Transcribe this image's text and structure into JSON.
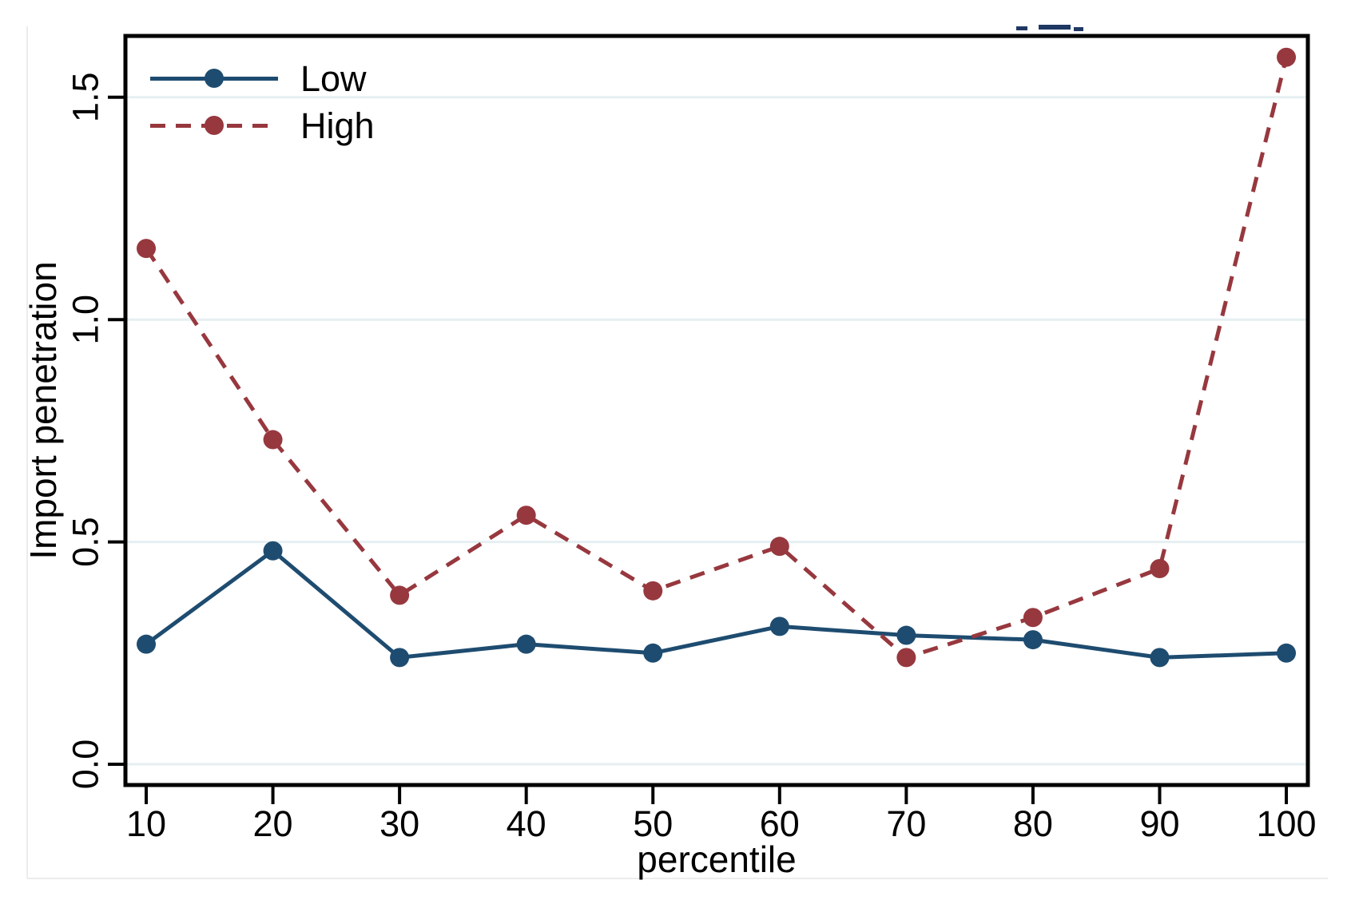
{
  "chart_data": {
    "type": "line",
    "title": "",
    "xlabel": "percentile",
    "ylabel": "Import penetration",
    "x": [
      10,
      20,
      30,
      40,
      50,
      60,
      70,
      80,
      90,
      100
    ],
    "x_tick_labels": [
      "10",
      "20",
      "30",
      "40",
      "50",
      "60",
      "70",
      "80",
      "90",
      "100"
    ],
    "y_ticks": [
      0.0,
      0.5,
      1.0,
      1.5
    ],
    "y_tick_labels": [
      "0.0",
      "0.5",
      "1.0",
      "1.5"
    ],
    "xlim": [
      8.4,
      101.7
    ],
    "ylim": [
      -0.05,
      1.64
    ],
    "grid": "horizontal",
    "legend_position": "top-left-inside",
    "series": [
      {
        "name": "Low",
        "style": "solid",
        "marker": "circle",
        "color": "#1e4c70",
        "values": [
          0.27,
          0.48,
          0.24,
          0.27,
          0.25,
          0.31,
          0.29,
          0.28,
          0.24,
          0.25
        ]
      },
      {
        "name": "High",
        "style": "dashed",
        "marker": "circle",
        "color": "#97383e",
        "values": [
          1.16,
          0.73,
          0.38,
          0.56,
          0.39,
          0.49,
          0.24,
          0.33,
          0.44,
          1.59
        ]
      }
    ],
    "colors": {
      "frame": "#000000",
      "gridline": "#e6eff1",
      "background": "#ffffff",
      "outer_edge": "#ececec"
    }
  }
}
